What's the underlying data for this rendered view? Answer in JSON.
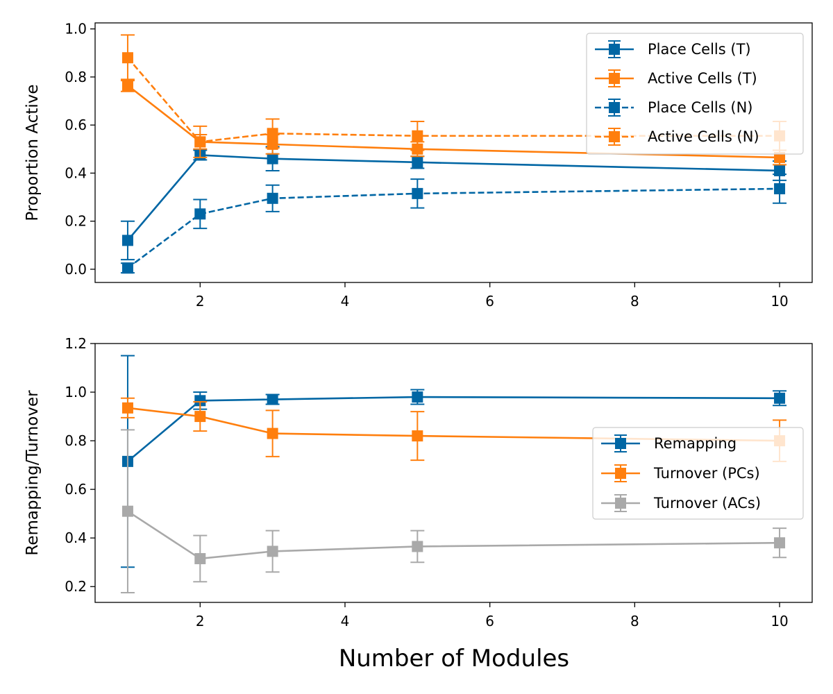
{
  "chart_data": [
    {
      "type": "line",
      "ylabel": "Proportion Active",
      "xlabel": "",
      "x": [
        1,
        2,
        3,
        5,
        10
      ],
      "xlim": [
        0.55,
        10.45
      ],
      "ylim": [
        -0.055,
        1.025
      ],
      "xticks": [
        2,
        4,
        6,
        8,
        10
      ],
      "yticks": [
        0.0,
        0.2,
        0.4,
        0.6,
        0.8,
        1.0
      ],
      "ytick_labels": [
        "0.0",
        "0.2",
        "0.4",
        "0.6",
        "0.8",
        "1.0"
      ],
      "legend_position": "top-right",
      "grid": false,
      "series": [
        {
          "name": "Place Cells (T)",
          "color": "#0066a4",
          "dash": "solid",
          "marker": "square",
          "values": [
            0.12,
            0.475,
            0.46,
            0.445,
            0.41
          ],
          "errors": [
            0.08,
            0.02,
            0.05,
            0.025,
            0.04
          ]
        },
        {
          "name": "Active Cells (T)",
          "color": "#ff7f0e",
          "dash": "solid",
          "marker": "square",
          "values": [
            0.765,
            0.53,
            0.52,
            0.5,
            0.465
          ],
          "errors": [
            0.025,
            0.03,
            0.04,
            0.03,
            0.03
          ]
        },
        {
          "name": "Place Cells (N)",
          "color": "#0066a4",
          "dash": "dashed",
          "marker": "square",
          "values": [
            0.005,
            0.23,
            0.295,
            0.315,
            0.335
          ],
          "errors": [
            0.02,
            0.06,
            0.055,
            0.06,
            0.06
          ]
        },
        {
          "name": "Active Cells (N)",
          "color": "#ff7f0e",
          "dash": "dashed",
          "marker": "square",
          "values": [
            0.88,
            0.53,
            0.565,
            0.555,
            0.555
          ],
          "errors": [
            0.095,
            0.065,
            0.06,
            0.06,
            0.06
          ]
        }
      ]
    },
    {
      "type": "line",
      "ylabel": "Remapping/Turnover",
      "xlabel": "Number of Modules",
      "x": [
        1,
        2,
        3,
        5,
        10
      ],
      "xlim": [
        0.55,
        10.45
      ],
      "ylim": [
        0.135,
        1.2
      ],
      "xticks": [
        2,
        4,
        6,
        8,
        10
      ],
      "yticks": [
        0.2,
        0.4,
        0.6,
        0.8,
        1.0,
        1.2
      ],
      "ytick_labels": [
        "0.2",
        "0.4",
        "0.6",
        "0.8",
        "1.0",
        "1.2"
      ],
      "legend_position": "center-right",
      "grid": false,
      "series": [
        {
          "name": "Remapping",
          "color": "#0066a4",
          "dash": "solid",
          "marker": "square",
          "values": [
            0.715,
            0.965,
            0.97,
            0.98,
            0.975
          ],
          "errors": [
            0.435,
            0.035,
            0.02,
            0.03,
            0.03
          ]
        },
        {
          "name": "Turnover (PCs)",
          "color": "#ff7f0e",
          "dash": "solid",
          "marker": "square",
          "values": [
            0.935,
            0.9,
            0.83,
            0.82,
            0.8
          ],
          "errors": [
            0.04,
            0.06,
            0.095,
            0.1,
            0.085
          ]
        },
        {
          "name": "Turnover (ACs)",
          "color": "#a9a9a9",
          "dash": "solid",
          "marker": "square",
          "values": [
            0.51,
            0.315,
            0.345,
            0.365,
            0.38
          ],
          "errors": [
            0.335,
            0.095,
            0.085,
            0.065,
            0.06
          ]
        }
      ]
    }
  ]
}
